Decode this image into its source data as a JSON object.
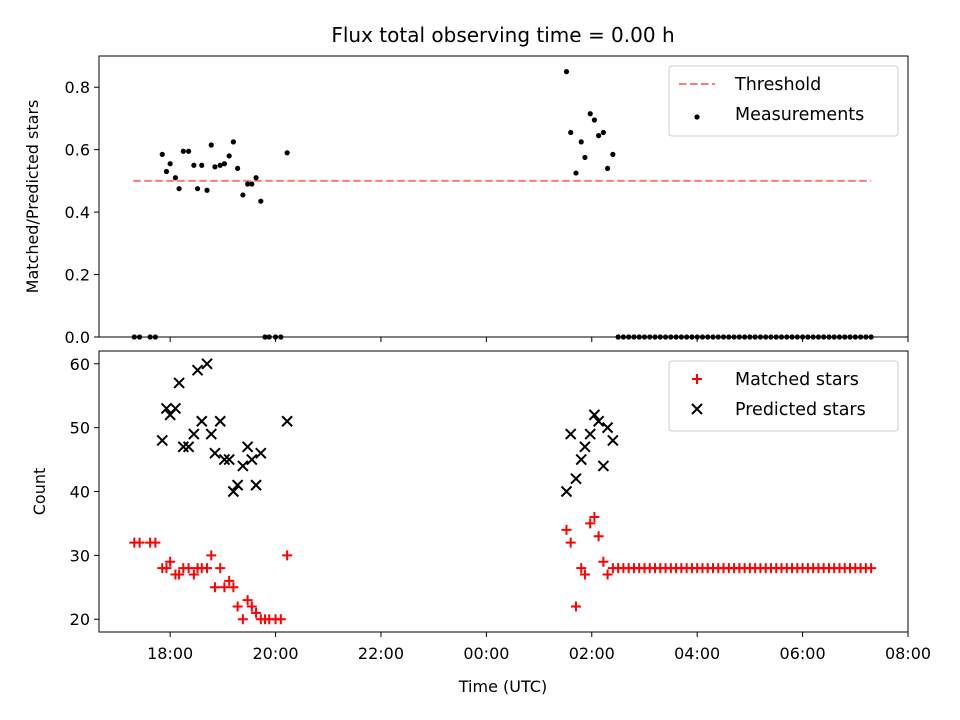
{
  "figure": {
    "title": "Flux total observing time = 0.00 h",
    "xlabel": "Time (UTC)"
  },
  "chart_data": [
    {
      "type": "scatter",
      "panel": "top",
      "title": "Flux total observing time = 0.00 h",
      "xlabel": "",
      "ylabel": "Matched/Predicted stars",
      "x_unit": "hours since 00:00 UTC of first day (17.0 = 17:00, 25.0 = 01:00 next day)",
      "xlim": [
        16.65,
        32.0
      ],
      "ylim": [
        0.0,
        0.9
      ],
      "yticks": [
        0.0,
        0.2,
        0.4,
        0.6,
        0.8
      ],
      "ytick_labels": [
        "0.0",
        "0.2",
        "0.4",
        "0.6",
        "0.8"
      ],
      "xticks": [
        18,
        20,
        22,
        24,
        26,
        28,
        30,
        32
      ],
      "xtick_labels": [
        "18:00",
        "20:00",
        "22:00",
        "00:00",
        "02:00",
        "04:00",
        "06:00",
        "08:00"
      ],
      "show_xtick_labels": false,
      "grid": false,
      "legend_position": "top-right",
      "threshold": {
        "name": "Threshold",
        "value": 0.5,
        "x_range": [
          17.3,
          31.3
        ],
        "color": "#ff7777",
        "style": "dashed"
      },
      "series": [
        {
          "name": "Measurements",
          "marker": "dot",
          "color": "#000000",
          "points": [
            [
              17.32,
              0.0
            ],
            [
              17.42,
              0.0
            ],
            [
              17.62,
              0.0
            ],
            [
              17.72,
              0.0
            ],
            [
              17.85,
              0.585
            ],
            [
              17.93,
              0.53
            ],
            [
              18.0,
              0.555
            ],
            [
              18.1,
              0.51
            ],
            [
              18.17,
              0.475
            ],
            [
              18.25,
              0.595
            ],
            [
              18.35,
              0.595
            ],
            [
              18.45,
              0.55
            ],
            [
              18.52,
              0.475
            ],
            [
              18.6,
              0.55
            ],
            [
              18.7,
              0.47
            ],
            [
              18.78,
              0.615
            ],
            [
              18.85,
              0.545
            ],
            [
              18.95,
              0.55
            ],
            [
              19.03,
              0.555
            ],
            [
              19.12,
              0.58
            ],
            [
              19.2,
              0.625
            ],
            [
              19.28,
              0.54
            ],
            [
              19.38,
              0.455
            ],
            [
              19.47,
              0.49
            ],
            [
              19.55,
              0.49
            ],
            [
              19.63,
              0.51
            ],
            [
              19.72,
              0.435
            ],
            [
              19.8,
              0.0
            ],
            [
              19.88,
              0.0
            ],
            [
              20.0,
              0.0
            ],
            [
              20.1,
              0.0
            ],
            [
              20.22,
              0.59
            ],
            [
              25.52,
              0.85
            ],
            [
              25.6,
              0.655
            ],
            [
              25.7,
              0.525
            ],
            [
              25.8,
              0.625
            ],
            [
              25.87,
              0.575
            ],
            [
              25.97,
              0.715
            ],
            [
              26.05,
              0.695
            ],
            [
              26.13,
              0.645
            ],
            [
              26.22,
              0.655
            ],
            [
              26.3,
              0.54
            ],
            [
              26.4,
              0.585
            ],
            [
              26.5,
              0.0
            ],
            [
              26.6,
              0.0
            ],
            [
              26.7,
              0.0
            ],
            [
              26.8,
              0.0
            ],
            [
              26.9,
              0.0
            ],
            [
              27.0,
              0.0
            ],
            [
              27.1,
              0.0
            ],
            [
              27.2,
              0.0
            ],
            [
              27.3,
              0.0
            ],
            [
              27.4,
              0.0
            ],
            [
              27.5,
              0.0
            ],
            [
              27.6,
              0.0
            ],
            [
              27.7,
              0.0
            ],
            [
              27.8,
              0.0
            ],
            [
              27.9,
              0.0
            ],
            [
              28.0,
              0.0
            ],
            [
              28.1,
              0.0
            ],
            [
              28.2,
              0.0
            ],
            [
              28.3,
              0.0
            ],
            [
              28.4,
              0.0
            ],
            [
              28.5,
              0.0
            ],
            [
              28.6,
              0.0
            ],
            [
              28.7,
              0.0
            ],
            [
              28.8,
              0.0
            ],
            [
              28.9,
              0.0
            ],
            [
              29.0,
              0.0
            ],
            [
              29.1,
              0.0
            ],
            [
              29.2,
              0.0
            ],
            [
              29.3,
              0.0
            ],
            [
              29.4,
              0.0
            ],
            [
              29.5,
              0.0
            ],
            [
              29.6,
              0.0
            ],
            [
              29.7,
              0.0
            ],
            [
              29.8,
              0.0
            ],
            [
              29.9,
              0.0
            ],
            [
              30.0,
              0.0
            ],
            [
              30.1,
              0.0
            ],
            [
              30.2,
              0.0
            ],
            [
              30.3,
              0.0
            ],
            [
              30.4,
              0.0
            ],
            [
              30.5,
              0.0
            ],
            [
              30.6,
              0.0
            ],
            [
              30.7,
              0.0
            ],
            [
              30.8,
              0.0
            ],
            [
              30.9,
              0.0
            ],
            [
              31.0,
              0.0
            ],
            [
              31.1,
              0.0
            ],
            [
              31.2,
              0.0
            ],
            [
              31.3,
              0.0
            ]
          ]
        }
      ]
    },
    {
      "type": "scatter",
      "panel": "bottom",
      "title": "",
      "xlabel": "Time (UTC)",
      "ylabel": "Count",
      "x_unit": "hours since 00:00 UTC of first day",
      "xlim": [
        16.65,
        32.0
      ],
      "ylim": [
        18.0,
        62.0
      ],
      "yticks": [
        20,
        30,
        40,
        50,
        60
      ],
      "ytick_labels": [
        "20",
        "30",
        "40",
        "50",
        "60"
      ],
      "xticks": [
        18,
        20,
        22,
        24,
        26,
        28,
        30,
        32
      ],
      "xtick_labels": [
        "18:00",
        "20:00",
        "22:00",
        "00:00",
        "02:00",
        "04:00",
        "06:00",
        "08:00"
      ],
      "show_xtick_labels": true,
      "grid": false,
      "legend_position": "top-right",
      "series": [
        {
          "name": "Matched stars",
          "marker": "plus",
          "color": "#ff0000",
          "points": [
            [
              17.32,
              32
            ],
            [
              17.42,
              32
            ],
            [
              17.62,
              32
            ],
            [
              17.72,
              32
            ],
            [
              17.85,
              28
            ],
            [
              17.93,
              28
            ],
            [
              18.0,
              29
            ],
            [
              18.1,
              27
            ],
            [
              18.17,
              27
            ],
            [
              18.25,
              28
            ],
            [
              18.35,
              28
            ],
            [
              18.45,
              27
            ],
            [
              18.52,
              28
            ],
            [
              18.6,
              28
            ],
            [
              18.7,
              28
            ],
            [
              18.78,
              30
            ],
            [
              18.85,
              25
            ],
            [
              18.95,
              28
            ],
            [
              19.03,
              25
            ],
            [
              19.12,
              26
            ],
            [
              19.2,
              25
            ],
            [
              19.28,
              22
            ],
            [
              19.38,
              20
            ],
            [
              19.47,
              23
            ],
            [
              19.55,
              22
            ],
            [
              19.63,
              21
            ],
            [
              19.72,
              20
            ],
            [
              19.8,
              20
            ],
            [
              19.88,
              20
            ],
            [
              20.0,
              20
            ],
            [
              20.1,
              20
            ],
            [
              20.22,
              30
            ],
            [
              25.52,
              34
            ],
            [
              25.6,
              32
            ],
            [
              25.7,
              22
            ],
            [
              25.8,
              28
            ],
            [
              25.87,
              27
            ],
            [
              25.97,
              35
            ],
            [
              26.05,
              36
            ],
            [
              26.13,
              33
            ],
            [
              26.22,
              29
            ],
            [
              26.3,
              27
            ],
            [
              26.4,
              28
            ],
            [
              26.5,
              28
            ],
            [
              26.6,
              28
            ],
            [
              26.7,
              28
            ],
            [
              26.8,
              28
            ],
            [
              26.9,
              28
            ],
            [
              27.0,
              28
            ],
            [
              27.1,
              28
            ],
            [
              27.2,
              28
            ],
            [
              27.3,
              28
            ],
            [
              27.4,
              28
            ],
            [
              27.5,
              28
            ],
            [
              27.6,
              28
            ],
            [
              27.7,
              28
            ],
            [
              27.8,
              28
            ],
            [
              27.9,
              28
            ],
            [
              28.0,
              28
            ],
            [
              28.1,
              28
            ],
            [
              28.2,
              28
            ],
            [
              28.3,
              28
            ],
            [
              28.4,
              28
            ],
            [
              28.5,
              28
            ],
            [
              28.6,
              28
            ],
            [
              28.7,
              28
            ],
            [
              28.8,
              28
            ],
            [
              28.9,
              28
            ],
            [
              29.0,
              28
            ],
            [
              29.1,
              28
            ],
            [
              29.2,
              28
            ],
            [
              29.3,
              28
            ],
            [
              29.4,
              28
            ],
            [
              29.5,
              28
            ],
            [
              29.6,
              28
            ],
            [
              29.7,
              28
            ],
            [
              29.8,
              28
            ],
            [
              29.9,
              28
            ],
            [
              30.0,
              28
            ],
            [
              30.1,
              28
            ],
            [
              30.2,
              28
            ],
            [
              30.3,
              28
            ],
            [
              30.4,
              28
            ],
            [
              30.5,
              28
            ],
            [
              30.6,
              28
            ],
            [
              30.7,
              28
            ],
            [
              30.8,
              28
            ],
            [
              30.9,
              28
            ],
            [
              31.0,
              28
            ],
            [
              31.1,
              28
            ],
            [
              31.2,
              28
            ],
            [
              31.3,
              28
            ]
          ]
        },
        {
          "name": "Predicted stars",
          "marker": "x",
          "color": "#000000",
          "points": [
            [
              17.85,
              48
            ],
            [
              17.93,
              53
            ],
            [
              18.0,
              52
            ],
            [
              18.1,
              53
            ],
            [
              18.17,
              57
            ],
            [
              18.25,
              47
            ],
            [
              18.35,
              47
            ],
            [
              18.45,
              49
            ],
            [
              18.52,
              59
            ],
            [
              18.6,
              51
            ],
            [
              18.7,
              60
            ],
            [
              18.78,
              49
            ],
            [
              18.85,
              46
            ],
            [
              18.95,
              51
            ],
            [
              19.03,
              45
            ],
            [
              19.12,
              45
            ],
            [
              19.2,
              40
            ],
            [
              19.28,
              41
            ],
            [
              19.38,
              44
            ],
            [
              19.47,
              47
            ],
            [
              19.55,
              45
            ],
            [
              19.63,
              41
            ],
            [
              19.72,
              46
            ],
            [
              20.22,
              51
            ],
            [
              25.52,
              40
            ],
            [
              25.6,
              49
            ],
            [
              25.7,
              42
            ],
            [
              25.8,
              45
            ],
            [
              25.87,
              47
            ],
            [
              25.97,
              49
            ],
            [
              26.05,
              52
            ],
            [
              26.13,
              51
            ],
            [
              26.22,
              44
            ],
            [
              26.3,
              50
            ],
            [
              26.4,
              48
            ]
          ]
        }
      ]
    }
  ]
}
